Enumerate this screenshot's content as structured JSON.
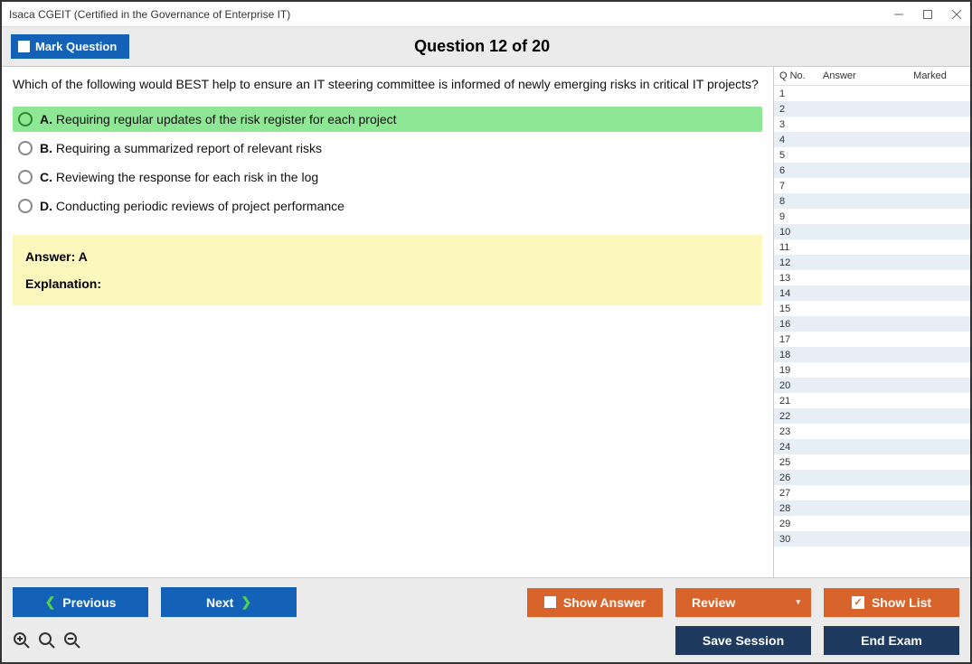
{
  "window": {
    "title": "Isaca CGEIT (Certified in the Governance of Enterprise IT)"
  },
  "header": {
    "mark_label": "Mark Question",
    "question_title": "Question 12 of 20"
  },
  "question": {
    "text": "Which of the following would BEST help to ensure an IT steering committee is informed of newly emerging risks in critical IT projects?",
    "options": [
      {
        "letter": "A.",
        "text": "Requiring regular updates of the risk register for each project",
        "correct": true
      },
      {
        "letter": "B.",
        "text": "Requiring a summarized report of relevant risks",
        "correct": false
      },
      {
        "letter": "C.",
        "text": "Reviewing the response for each risk in the log",
        "correct": false
      },
      {
        "letter": "D.",
        "text": "Conducting periodic reviews of project performance",
        "correct": false
      }
    ],
    "answer_label": "Answer: A",
    "explanation_label": "Explanation:"
  },
  "sidebar": {
    "headers": {
      "qno": "Q No.",
      "answer": "Answer",
      "marked": "Marked"
    },
    "row_count": 30
  },
  "footer": {
    "previous": "Previous",
    "next": "Next",
    "show_answer": "Show Answer",
    "review": "Review",
    "show_list": "Show List",
    "save_session": "Save Session",
    "end_exam": "End Exam"
  },
  "colors": {
    "blue": "#1461b8",
    "orange": "#d9642b",
    "navy": "#1e3a5f",
    "correct_bg": "#8ee794",
    "answer_bg": "#fbf7bd",
    "stripe": "#e8eef5",
    "header_bg": "#ebebeb"
  }
}
